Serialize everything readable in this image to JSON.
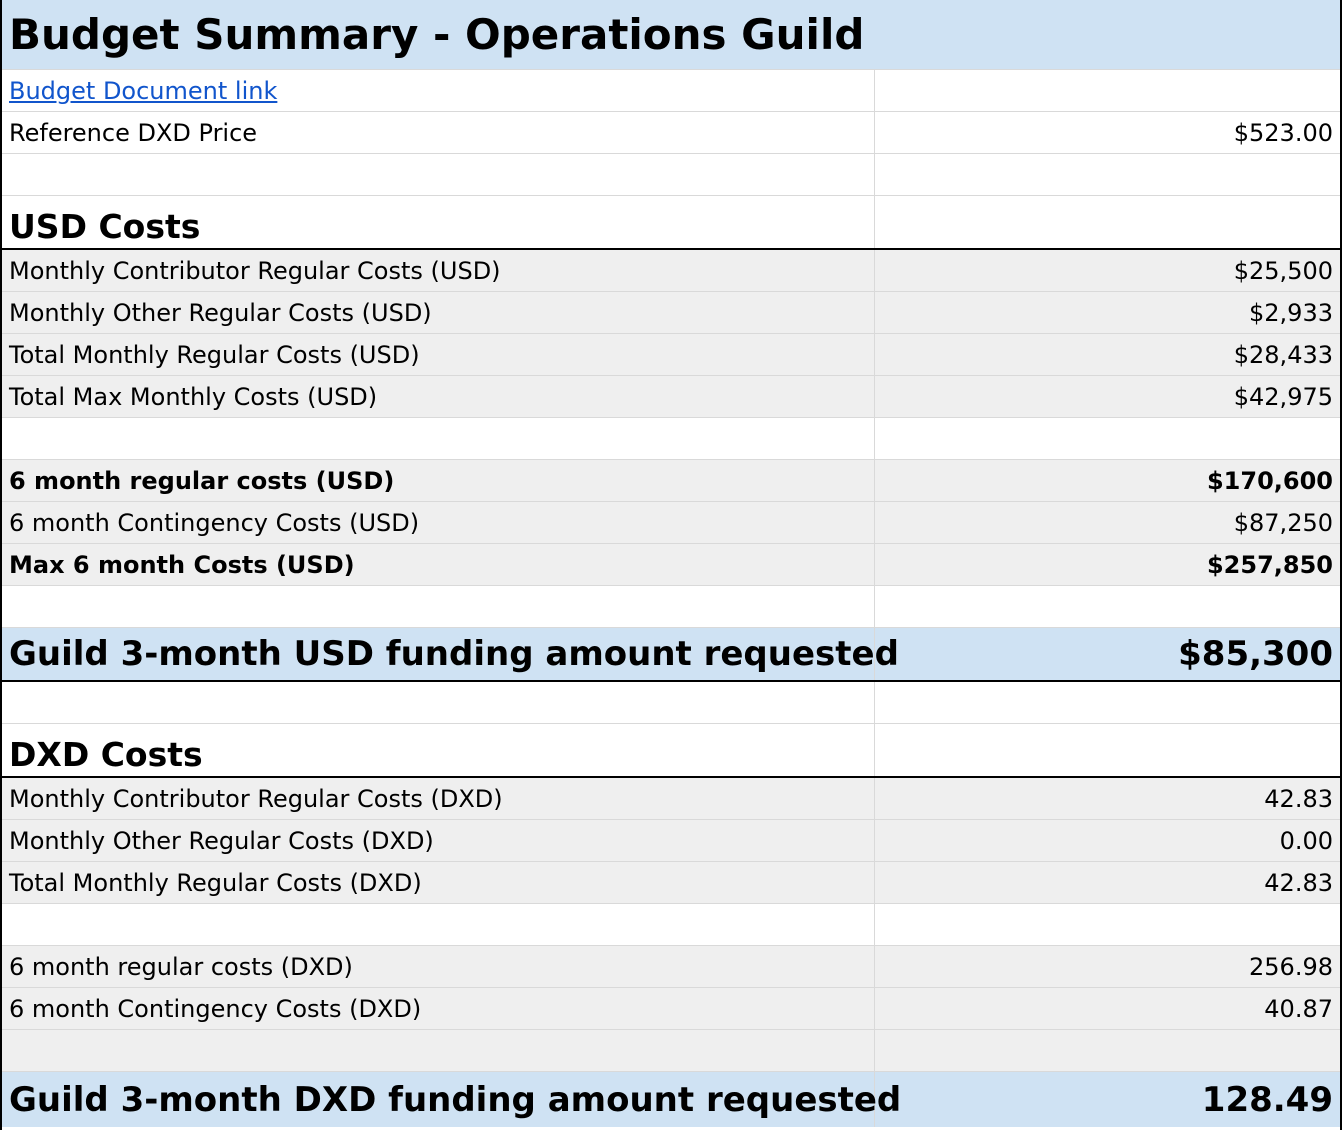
{
  "sheet": {
    "title": "Budget Summary - Operations Guild",
    "doc_link": "Budget Document link",
    "ref_price": {
      "label": "Reference DXD Price",
      "value": "$523.00"
    },
    "usd": {
      "heading": "USD Costs",
      "rows": [
        {
          "label": "Monthly Contributor Regular Costs (USD)",
          "value": "$25,500"
        },
        {
          "label": "Monthly Other Regular Costs (USD)",
          "value": "$2,933"
        },
        {
          "label": "Total Monthly Regular Costs (USD)",
          "value": "$28,433"
        },
        {
          "label": "Total Max Monthly Costs (USD)",
          "value": "$42,975"
        }
      ],
      "six_month": [
        {
          "label": "6 month regular costs (USD)",
          "value": "$170,600"
        },
        {
          "label": "6 month Contingency Costs (USD)",
          "value": "$87,250"
        },
        {
          "label": "Max 6 month Costs (USD)",
          "value": "$257,850"
        }
      ],
      "total": {
        "label": "Guild 3-month USD funding amount requested",
        "value": "$85,300"
      }
    },
    "dxd": {
      "heading": "DXD Costs",
      "rows": [
        {
          "label": "Monthly Contributor Regular Costs (DXD)",
          "value": "42.83"
        },
        {
          "label": "Monthly Other Regular Costs (DXD)",
          "value": "0.00"
        },
        {
          "label": "Total Monthly Regular Costs (DXD)",
          "value": "42.83"
        }
      ],
      "six_month": [
        {
          "label": "6 month regular costs (DXD)",
          "value": "256.98"
        },
        {
          "label": "6 month Contingency Costs (DXD)",
          "value": "40.87"
        }
      ],
      "total": {
        "label": "Guild 3-month DXD funding amount requested",
        "value": "128.49"
      }
    }
  }
}
